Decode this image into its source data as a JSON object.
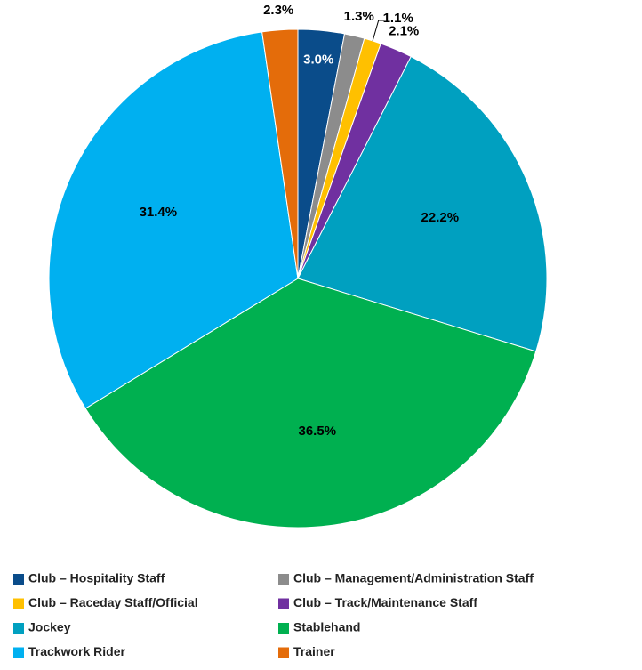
{
  "chart_data": {
    "type": "pie",
    "categories": [
      "Club – Hospitality Staff",
      "Club – Management/Administration Staff",
      "Club – Raceday Staff/Official",
      "Club – Track/Maintenance Staff",
      "Jockey",
      "Stablehand",
      "Trackwork Rider",
      "Trainer"
    ],
    "values": [
      3.0,
      1.3,
      1.1,
      2.1,
      22.2,
      36.5,
      31.4,
      2.3
    ],
    "value_labels": [
      "3.0%",
      "1.3%",
      "1.1%",
      "2.1%",
      "22.2%",
      "36.5%",
      "31.4%",
      "2.3%"
    ],
    "colors": [
      "#0a4c8a",
      "#8c8c8c",
      "#ffc000",
      "#7030a0",
      "#00a0c0",
      "#00b050",
      "#00b0f0",
      "#e46c0a"
    ],
    "legend": "bottom"
  }
}
